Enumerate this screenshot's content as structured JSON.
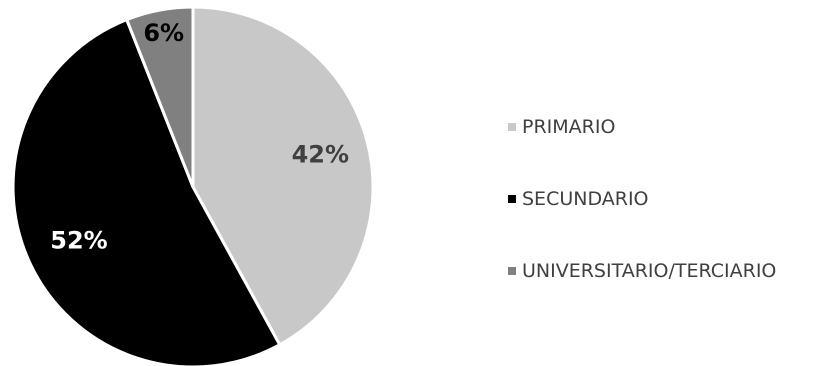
{
  "chart_data": {
    "type": "pie",
    "title": "",
    "categories": [
      "PRIMARIO",
      "SECUNDARIO",
      "UNIVERSITARIO/TERCIARIO"
    ],
    "values": [
      42,
      52,
      6
    ],
    "data_labels": [
      "42%",
      "52%",
      "6%"
    ],
    "colors": [
      "#c8c8c8",
      "#000000",
      "#808080"
    ],
    "label_colors": [
      "#404040",
      "#ffffff",
      "#000000"
    ],
    "legend_position": "right",
    "start_angle": "12 o'clock",
    "direction": "clockwise"
  }
}
